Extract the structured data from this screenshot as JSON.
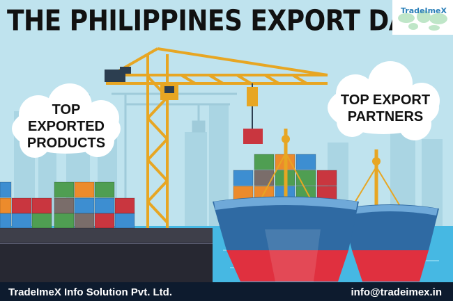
{
  "title": "THE PHILIPPINES EXPORT DATA",
  "logo": {
    "name": "TradeImeX",
    "icon": "world-map-icon"
  },
  "labels": {
    "top_products": [
      "TOP EXPORTED",
      "PRODUCTS"
    ],
    "top_partners": [
      "TOP EXPORT",
      "PARTNERS"
    ]
  },
  "footer": {
    "company": "TradeImeX Info Solution Pvt. Ltd.",
    "email": "info@tradeimex.in"
  },
  "colors": {
    "sky": "#bfe3ee",
    "sea": "#46b8e3",
    "crane": "#e7a623",
    "hull_blue": "#2f6aa3",
    "hull_red": "#e0303f",
    "container_green": "#4f9e52",
    "container_red": "#c9363f",
    "container_orange": "#ec8b2c",
    "container_blue": "#3d8ed1",
    "footer_bg": "#0d1b2e"
  }
}
